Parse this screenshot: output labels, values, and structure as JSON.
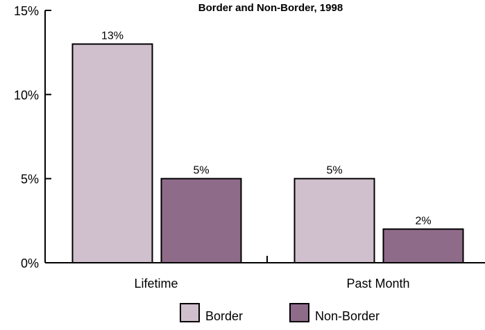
{
  "chart_data": {
    "type": "bar",
    "title": "Border and Non-Border, 1998",
    "categories": [
      "Lifetime",
      "Past Month"
    ],
    "series": [
      {
        "name": "Border",
        "values": [
          13,
          5
        ],
        "labels": [
          "13%",
          "5%"
        ],
        "color": "#d0bfcc"
      },
      {
        "name": "Non-Border",
        "values": [
          5,
          2
        ],
        "labels": [
          "5%",
          "2%"
        ],
        "color": "#8f6b8a"
      }
    ],
    "ylim": [
      0,
      15
    ],
    "yticks": [
      0,
      5,
      10,
      15
    ],
    "ytick_labels": [
      "0%",
      "5%",
      "10%",
      "15%"
    ],
    "xlabel": "",
    "ylabel": "",
    "grid": false,
    "legend_position": "bottom"
  }
}
